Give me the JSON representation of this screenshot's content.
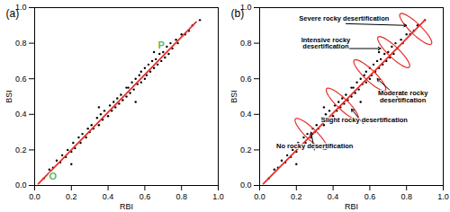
{
  "chart_data": [
    {
      "type": "scatter",
      "title": "(a)",
      "x_label": "RBI",
      "y_label": "BSI",
      "color": "#000000",
      "x": [
        0.05,
        0.08,
        0.1,
        0.12,
        0.14,
        0.15,
        0.17,
        0.18,
        0.2,
        0.21,
        0.22,
        0.24,
        0.25,
        0.26,
        0.28,
        0.29,
        0.3,
        0.31,
        0.32,
        0.34,
        0.35,
        0.36,
        0.37,
        0.38,
        0.4,
        0.41,
        0.42,
        0.43,
        0.44,
        0.45,
        0.46,
        0.47,
        0.48,
        0.5,
        0.5,
        0.51,
        0.52,
        0.53,
        0.54,
        0.55,
        0.56,
        0.57,
        0.58,
        0.58,
        0.6,
        0.6,
        0.61,
        0.62,
        0.63,
        0.64,
        0.65,
        0.66,
        0.67,
        0.68,
        0.69,
        0.7,
        0.71,
        0.72,
        0.73,
        0.74,
        0.75,
        0.77,
        0.78,
        0.8,
        0.82,
        0.84,
        0.86,
        0.9,
        0.35,
        0.55,
        0.2,
        0.65
      ],
      "y": [
        0.04,
        0.09,
        0.1,
        0.14,
        0.13,
        0.17,
        0.16,
        0.2,
        0.19,
        0.24,
        0.21,
        0.27,
        0.24,
        0.29,
        0.27,
        0.32,
        0.3,
        0.34,
        0.32,
        0.38,
        0.34,
        0.4,
        0.37,
        0.42,
        0.39,
        0.45,
        0.42,
        0.47,
        0.44,
        0.49,
        0.46,
        0.51,
        0.48,
        0.55,
        0.5,
        0.55,
        0.52,
        0.58,
        0.54,
        0.6,
        0.57,
        0.62,
        0.58,
        0.64,
        0.6,
        0.66,
        0.62,
        0.68,
        0.64,
        0.7,
        0.66,
        0.71,
        0.68,
        0.74,
        0.7,
        0.75,
        0.72,
        0.78,
        0.74,
        0.8,
        0.77,
        0.82,
        0.8,
        0.85,
        0.85,
        0.87,
        0.9,
        0.93,
        0.44,
        0.47,
        0.12,
        0.75
      ],
      "xlim": [
        0,
        1
      ],
      "ylim": [
        0,
        1
      ],
      "xticks": [
        {
          "value": 0,
          "label": "0.0"
        },
        0.2,
        0.4,
        0.6,
        0.8,
        {
          "value": 1,
          "label": "1.0"
        }
      ],
      "yticks": [
        {
          "value": 0,
          "label": "0.0"
        },
        0.2,
        0.4,
        0.6,
        0.8,
        {
          "value": 1,
          "label": "1.0"
        }
      ],
      "fit_line": {
        "x": [
          0.02,
          0.88
        ],
        "y": [
          0.01,
          0.92
        ],
        "color": "#e8302a"
      },
      "annotations": [
        {
          "text": "O",
          "x": 0.1,
          "y": 0.05,
          "color": "#5cb85c"
        },
        {
          "text": "P",
          "x": 0.69,
          "y": 0.79,
          "color": "#5cb85c"
        }
      ]
    },
    {
      "type": "scatter",
      "title": "(b)",
      "x_label": "RBI",
      "y_label": "BSI",
      "color": "#000000",
      "x": [
        0.05,
        0.08,
        0.1,
        0.12,
        0.14,
        0.15,
        0.17,
        0.18,
        0.2,
        0.21,
        0.22,
        0.24,
        0.25,
        0.26,
        0.28,
        0.29,
        0.3,
        0.31,
        0.32,
        0.34,
        0.35,
        0.36,
        0.37,
        0.38,
        0.4,
        0.41,
        0.42,
        0.43,
        0.44,
        0.45,
        0.46,
        0.47,
        0.48,
        0.5,
        0.5,
        0.51,
        0.52,
        0.53,
        0.54,
        0.55,
        0.56,
        0.57,
        0.58,
        0.58,
        0.6,
        0.6,
        0.61,
        0.62,
        0.63,
        0.64,
        0.65,
        0.66,
        0.67,
        0.68,
        0.69,
        0.7,
        0.71,
        0.72,
        0.73,
        0.74,
        0.75,
        0.77,
        0.78,
        0.8,
        0.82,
        0.84,
        0.86,
        0.9,
        0.35,
        0.55,
        0.2,
        0.65
      ],
      "y": [
        0.04,
        0.09,
        0.1,
        0.14,
        0.13,
        0.17,
        0.16,
        0.2,
        0.19,
        0.24,
        0.21,
        0.27,
        0.24,
        0.29,
        0.27,
        0.32,
        0.3,
        0.34,
        0.32,
        0.38,
        0.34,
        0.4,
        0.37,
        0.42,
        0.39,
        0.45,
        0.42,
        0.47,
        0.44,
        0.49,
        0.46,
        0.51,
        0.48,
        0.55,
        0.5,
        0.55,
        0.52,
        0.58,
        0.54,
        0.6,
        0.57,
        0.62,
        0.58,
        0.64,
        0.6,
        0.66,
        0.62,
        0.68,
        0.64,
        0.7,
        0.66,
        0.71,
        0.68,
        0.74,
        0.7,
        0.75,
        0.72,
        0.78,
        0.74,
        0.8,
        0.77,
        0.82,
        0.8,
        0.85,
        0.85,
        0.87,
        0.9,
        0.93,
        0.44,
        0.47,
        0.12,
        0.75
      ],
      "xlim": [
        0,
        1
      ],
      "ylim": [
        0,
        1
      ],
      "xticks": [
        {
          "value": 0,
          "label": "0.0"
        },
        0.2,
        0.4,
        0.6,
        0.8,
        {
          "value": 1,
          "label": "1.0"
        }
      ],
      "yticks": [
        {
          "value": 0,
          "label": "0.0"
        },
        0.2,
        0.4,
        0.6,
        0.8,
        {
          "value": 1,
          "label": "1.0"
        }
      ],
      "fit_line": {
        "x": [
          0.02,
          0.9
        ],
        "y": [
          0.01,
          0.93
        ],
        "color": "#e8302a"
      },
      "ellipses": {
        "x": [
          0.28,
          0.45,
          0.6,
          0.73,
          0.85
        ],
        "y": [
          0.29,
          0.46,
          0.62,
          0.75,
          0.88
        ],
        "color": "#e8302a"
      },
      "annotations": [
        {
          "text": "Severe rocky desertification",
          "x": 0.46,
          "y": 0.94,
          "arrow_x": 0.8,
          "arrow_y": 0.9,
          "color": "#000000"
        },
        {
          "text": "Intensive rocky\ndesertification",
          "x": 0.36,
          "y": 0.8,
          "arrow_x": 0.66,
          "arrow_y": 0.77,
          "color": "#000000"
        },
        {
          "text": "Moderate rocky\ndesertification",
          "x": 0.78,
          "y": 0.5,
          "arrow_x": 0.64,
          "arrow_y": 0.6,
          "color": "#000000"
        },
        {
          "text": "Slight rocky desertification",
          "x": 0.57,
          "y": 0.37,
          "arrow_x": 0.5,
          "arrow_y": 0.43,
          "color": "#000000"
        },
        {
          "text": "No rocky desertification",
          "x": 0.3,
          "y": 0.22,
          "arrow_x": 0.28,
          "arrow_y": 0.3,
          "color": "#000000"
        }
      ]
    }
  ]
}
